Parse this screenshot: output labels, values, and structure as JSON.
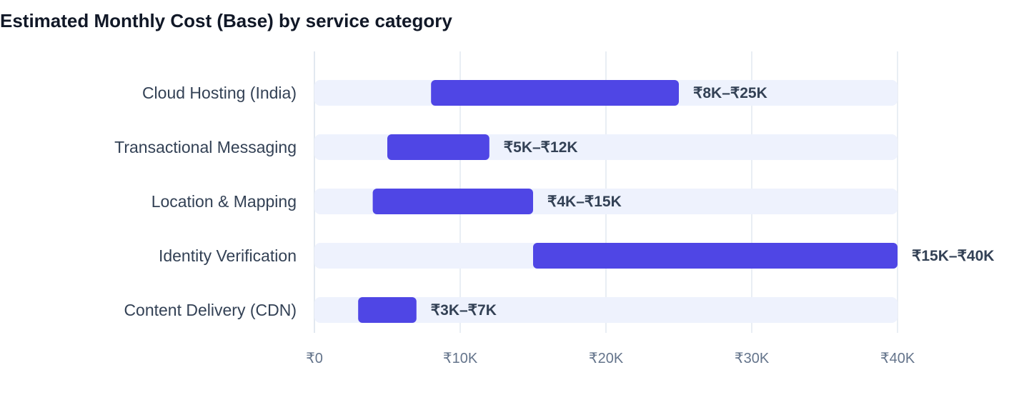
{
  "chart_data": {
    "type": "bar",
    "orientation": "horizontal",
    "subtype": "range",
    "title": "Estimated Monthly Cost (Base) by service category",
    "xlabel": "",
    "ylabel": "",
    "xlim": [
      0,
      40000
    ],
    "x_ticks": [
      {
        "value": 0,
        "label": "₹0"
      },
      {
        "value": 10000,
        "label": "₹10K"
      },
      {
        "value": 20000,
        "label": "₹20K"
      },
      {
        "value": 30000,
        "label": "₹30K"
      },
      {
        "value": 40000,
        "label": "₹40K"
      }
    ],
    "categories": [
      "Cloud Hosting (India)",
      "Transactional Messaging",
      "Location & Mapping",
      "Identity Verification",
      "Content Delivery (CDN)"
    ],
    "ranges": [
      {
        "low": 8000,
        "high": 25000,
        "label": "₹8K–₹25K"
      },
      {
        "low": 5000,
        "high": 12000,
        "label": "₹5K–₹12K"
      },
      {
        "low": 4000,
        "high": 15000,
        "label": "₹4K–₹15K"
      },
      {
        "low": 15000,
        "high": 40000,
        "label": "₹15K–₹40K"
      },
      {
        "low": 3000,
        "high": 7000,
        "label": "₹3K–₹7K"
      }
    ],
    "grid": true,
    "legend": "none",
    "colors": {
      "range_bar": "#4f46e5",
      "track": "#eef2fd",
      "grid": "#e2e8f0"
    }
  }
}
